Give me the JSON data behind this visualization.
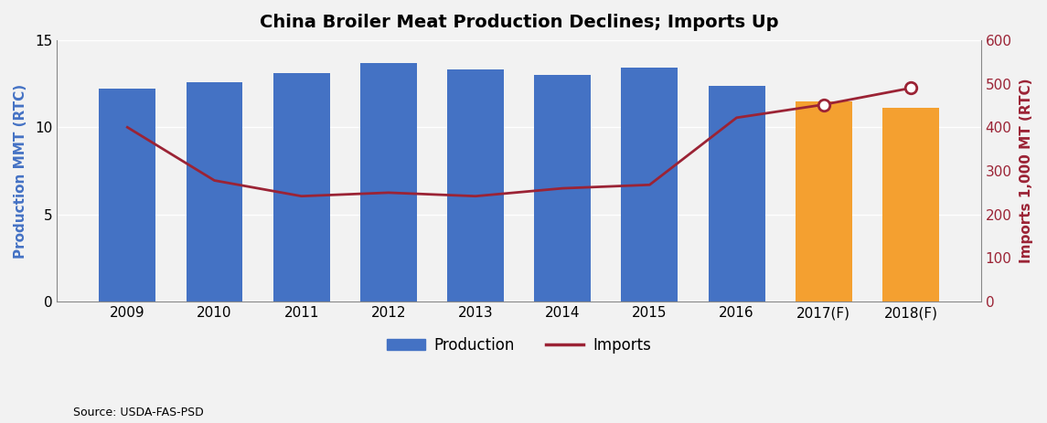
{
  "title": "China Broiler Meat Production Declines; Imports Up",
  "categories": [
    "2009",
    "2010",
    "2011",
    "2012",
    "2013",
    "2014",
    "2015",
    "2016",
    "2017(F)",
    "2018(F)"
  ],
  "production": [
    12.2,
    12.6,
    13.1,
    13.7,
    13.3,
    13.0,
    13.4,
    12.4,
    11.5,
    11.1
  ],
  "imports": [
    400,
    278,
    242,
    250,
    242,
    260,
    268,
    422,
    452,
    490
  ],
  "bar_colors": [
    "#4472C4",
    "#4472C4",
    "#4472C4",
    "#4472C4",
    "#4472C4",
    "#4472C4",
    "#4472C4",
    "#4472C4",
    "#F4A030",
    "#F4A030"
  ],
  "line_color": "#9B2335",
  "ylabel_left": "Production MMT (RTC)",
  "ylabel_right": "Imports 1,000 MT (RTC)",
  "ylim_left": [
    0,
    15
  ],
  "ylim_right": [
    0,
    600
  ],
  "yticks_left": [
    0,
    5,
    10,
    15
  ],
  "yticks_right": [
    0,
    100,
    200,
    300,
    400,
    500,
    600
  ],
  "source_text": "Source: USDA-FAS-PSD",
  "legend_production": "Production",
  "legend_imports": "Imports",
  "left_label_color": "#4472C4",
  "right_label_color": "#9B2335",
  "background_color": "#F2F2F2",
  "plot_bg_color": "#F2F2F2",
  "grid_color": "#FFFFFF"
}
